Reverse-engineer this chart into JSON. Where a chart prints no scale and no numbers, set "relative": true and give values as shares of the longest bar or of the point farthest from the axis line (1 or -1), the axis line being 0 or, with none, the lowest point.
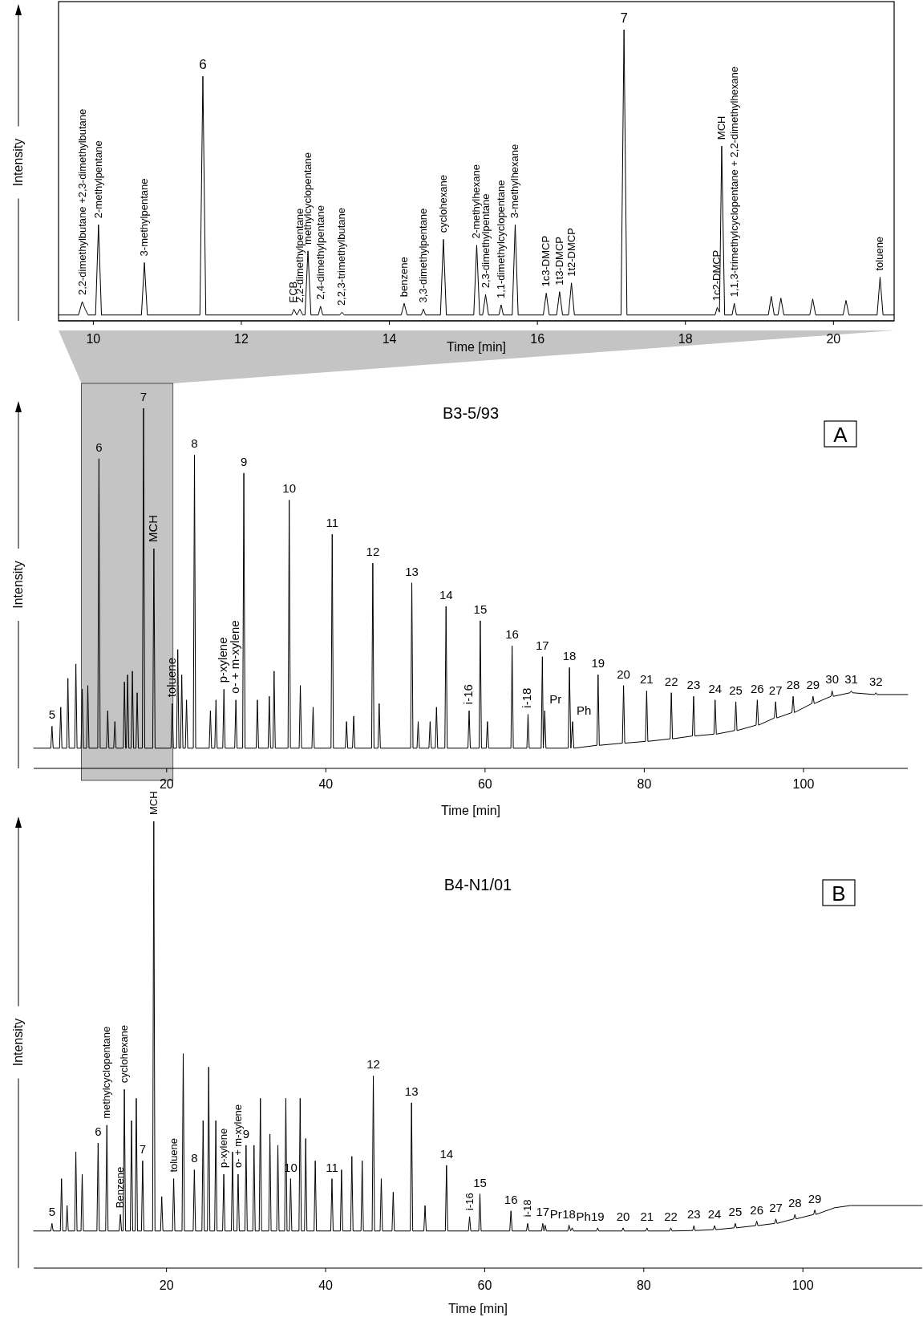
{
  "chart_data": [
    {
      "type": "line",
      "xlabel": "Time [min]",
      "ylabel": "Intensity",
      "relative": true,
      "color": "#000000",
      "xlim": [
        9.53,
        20.82
      ],
      "xticks": [
        10,
        12,
        14,
        16,
        18,
        20
      ],
      "x": [
        9.53,
        9.8,
        9.85,
        9.89,
        9.93,
        10.03,
        10.07,
        10.11,
        10.65,
        10.69,
        10.73,
        11.44,
        11.48,
        11.52,
        12.68,
        12.71,
        12.75,
        12.79,
        12.83,
        12.86,
        12.9,
        12.94,
        13.04,
        13.07,
        13.1,
        13.33,
        13.36,
        13.39,
        14.16,
        14.2,
        14.24,
        14.43,
        14.46,
        14.49,
        14.69,
        14.73,
        14.77,
        15.14,
        15.18,
        15.22,
        15.26,
        15.3,
        15.34,
        15.48,
        15.51,
        15.54,
        15.66,
        15.7,
        15.74,
        16.08,
        16.12,
        16.16,
        16.26,
        16.3,
        16.34,
        16.42,
        16.46,
        16.5,
        17.13,
        17.17,
        17.21,
        18.4,
        18.43,
        18.46,
        18.49,
        18.53,
        18.63,
        18.66,
        18.69,
        19.12,
        19.16,
        19.2,
        19.25,
        19.29,
        19.33,
        19.68,
        19.72,
        19.76,
        20.13,
        20.17,
        20.21,
        20.59,
        20.63,
        20.67,
        20.82
      ],
      "values": [
        0.02,
        0.02,
        0.066,
        0.04,
        0.02,
        0.02,
        0.33,
        0.02,
        0.02,
        0.2,
        0.02,
        0.02,
        0.84,
        0.02,
        0.02,
        0.04,
        0.02,
        0.04,
        0.02,
        0.02,
        0.24,
        0.02,
        0.02,
        0.05,
        0.02,
        0.02,
        0.03,
        0.02,
        0.02,
        0.06,
        0.02,
        0.02,
        0.04,
        0.02,
        0.02,
        0.28,
        0.02,
        0.02,
        0.26,
        0.02,
        0.02,
        0.09,
        0.02,
        0.02,
        0.055,
        0.02,
        0.02,
        0.33,
        0.02,
        0.02,
        0.095,
        0.02,
        0.02,
        0.1,
        0.02,
        0.02,
        0.13,
        0.02,
        0.02,
        1,
        0.02,
        0.02,
        0.046,
        0.03,
        0.6,
        0.02,
        0.02,
        0.06,
        0.02,
        0.02,
        0.084,
        0.02,
        0.02,
        0.078,
        0.02,
        0.02,
        0.075,
        0.02,
        0.02,
        0.07,
        0.02,
        0.02,
        0.15,
        0.02,
        0.02
      ],
      "annotations": [
        {
          "text": "2,2-dimethylbutane +2,3-dimethylbutane",
          "x": 9.85,
          "y": 0.066
        },
        {
          "text": "2-methylpentane",
          "x": 10.07,
          "y": 0.33
        },
        {
          "text": "3-methylpentane",
          "x": 10.69,
          "y": 0.2
        },
        {
          "text": "6",
          "x": 11.48,
          "y": 0.84
        },
        {
          "text": "ECB",
          "x": 12.71,
          "y": 0.04
        },
        {
          "text": "2,2-dimethylpentane",
          "x": 12.79,
          "y": 0.04
        },
        {
          "text": "methylcyclopentane",
          "x": 12.9,
          "y": 0.24
        },
        {
          "text": "2,4-dimethylpentane",
          "x": 13.07,
          "y": 0.05
        },
        {
          "text": "2,2,3-trimethylbutane",
          "x": 13.36,
          "y": 0.03
        },
        {
          "text": "benzene",
          "x": 14.2,
          "y": 0.06
        },
        {
          "text": "3,3-dimethylpentane",
          "x": 14.46,
          "y": 0.04
        },
        {
          "text": "cyclohexane",
          "x": 14.73,
          "y": 0.28
        },
        {
          "text": "2-methylhexane",
          "x": 15.18,
          "y": 0.26
        },
        {
          "text": "2,3-dimethylpentane",
          "x": 15.3,
          "y": 0.09
        },
        {
          "text": "1,1-dimethylcyclopentane",
          "x": 15.51,
          "y": 0.055
        },
        {
          "text": "3-methylhexane",
          "x": 15.7,
          "y": 0.33
        },
        {
          "text": "1c3-DMCP",
          "x": 16.12,
          "y": 0.095
        },
        {
          "text": "1t3-DMCP",
          "x": 16.3,
          "y": 0.1
        },
        {
          "text": "1t2-DMCP",
          "x": 16.46,
          "y": 0.13
        },
        {
          "text": "7",
          "x": 17.17,
          "y": 1
        },
        {
          "text": "1c2-DMCP",
          "x": 18.43,
          "y": 0.046
        },
        {
          "text": "MCH",
          "x": 18.49,
          "y": 0.6
        },
        {
          "text": "1,1,3-trimethylcyclopentane + 2,2-dimethylhexane",
          "x": 18.66,
          "y": 0.06
        },
        {
          "text": "toluene",
          "x": 20.63,
          "y": 0.15
        }
      ]
    },
    {
      "type": "line",
      "title": "B3-5/93",
      "xlabel": "Time [min]",
      "ylabel": "Intensity",
      "relative": true,
      "color": "#000000",
      "xlim": [
        3.3,
        113.1
      ],
      "xticks": [
        20,
        40,
        60,
        80,
        100
      ],
      "bands": [
        {
          "axis": "x",
          "from": 9.3,
          "to": 20.8,
          "color": "#c4c4c4"
        }
      ],
      "x": [
        3.3,
        5.45,
        5.6,
        5.75,
        6.55,
        6.7,
        6.85,
        7.45,
        7.6,
        7.75,
        8.45,
        8.6,
        8.75,
        9.25,
        9.4,
        9.55,
        9.95,
        10.1,
        10.25,
        11.35,
        11.5,
        11.65,
        12.45,
        12.6,
        12.75,
        13.35,
        13.5,
        13.65,
        14.55,
        14.7,
        14.85,
        14.95,
        15.1,
        15.25,
        15.55,
        15.7,
        15.85,
        16.15,
        16.3,
        16.45,
        16.95,
        17.1,
        17.25,
        18.25,
        18.4,
        18.55,
        20.55,
        20.7,
        20.85,
        21.25,
        21.4,
        21.55,
        21.75,
        21.9,
        22.05,
        22.35,
        22.5,
        22.65,
        23.35,
        23.5,
        23.65,
        25.35,
        25.5,
        25.65,
        26.05,
        26.2,
        26.35,
        27.05,
        27.2,
        27.35,
        28.55,
        28.7,
        28.85,
        29.55,
        29.7,
        29.85,
        31.25,
        31.4,
        31.55,
        32.75,
        32.9,
        33.05,
        33.35,
        33.5,
        33.65,
        35.25,
        35.4,
        35.55,
        36.65,
        36.8,
        36.95,
        38.25,
        38.4,
        38.55,
        40.65,
        40.8,
        40.95,
        42.45,
        42.6,
        42.75,
        43.35,
        43.5,
        43.65,
        45.75,
        45.9,
        46.05,
        46.55,
        46.7,
        46.85,
        50.65,
        50.8,
        50.95,
        51.45,
        51.6,
        51.75,
        52.95,
        53.1,
        53.25,
        53.75,
        53.9,
        54.05,
        54.95,
        55.1,
        55.25,
        57.85,
        58.0,
        58.15,
        59.25,
        59.4,
        59.55,
        60.15,
        60.3,
        60.45,
        63.25,
        63.4,
        63.55,
        65.25,
        65.4,
        65.55,
        67.05,
        67.2,
        67.32,
        67.5,
        67.65,
        70.45,
        70.6,
        70.78,
        71.0,
        71.15,
        74.05,
        74.2,
        74.35,
        77.25,
        77.4,
        77.55,
        80.15,
        80.3,
        80.45,
        83.25,
        83.4,
        83.55,
        86.05,
        86.2,
        86.35,
        88.75,
        88.9,
        89.05,
        91.35,
        91.5,
        91.65,
        94.05,
        94.2,
        94.35,
        96.35,
        96.5,
        96.65,
        98.55,
        98.7,
        98.85,
        101.05,
        101.2,
        101.35,
        103.45,
        103.6,
        103.75,
        105.85,
        106.0,
        106.15,
        108.95,
        109.1,
        109.25,
        113.1
      ],
      "values": [
        0.056,
        0.056,
        0.117,
        0.056,
        0.056,
        0.17,
        0.056,
        0.056,
        0.25,
        0.056,
        0.056,
        0.29,
        0.056,
        0.056,
        0.22,
        0.056,
        0.056,
        0.23,
        0.056,
        0.056,
        0.86,
        0.056,
        0.056,
        0.16,
        0.056,
        0.056,
        0.13,
        0.056,
        0.056,
        0.24,
        0.056,
        0.056,
        0.26,
        0.056,
        0.056,
        0.27,
        0.056,
        0.056,
        0.21,
        0.056,
        0.056,
        1,
        0.056,
        0.056,
        0.61,
        0.056,
        0.056,
        0.18,
        0.056,
        0.056,
        0.33,
        0.056,
        0.056,
        0.26,
        0.056,
        0.056,
        0.19,
        0.056,
        0.056,
        0.87,
        0.056,
        0.056,
        0.16,
        0.056,
        0.056,
        0.19,
        0.056,
        0.056,
        0.22,
        0.056,
        0.056,
        0.19,
        0.056,
        0.056,
        0.82,
        0.056,
        0.056,
        0.19,
        0.056,
        0.056,
        0.2,
        0.056,
        0.056,
        0.27,
        0.056,
        0.056,
        0.745,
        0.056,
        0.056,
        0.23,
        0.056,
        0.056,
        0.17,
        0.056,
        0.056,
        0.65,
        0.056,
        0.056,
        0.13,
        0.056,
        0.056,
        0.145,
        0.056,
        0.056,
        0.57,
        0.056,
        0.056,
        0.18,
        0.056,
        0.056,
        0.515,
        0.056,
        0.056,
        0.13,
        0.056,
        0.056,
        0.13,
        0.056,
        0.056,
        0.17,
        0.056,
        0.056,
        0.45,
        0.056,
        0.056,
        0.16,
        0.056,
        0.056,
        0.41,
        0.056,
        0.056,
        0.13,
        0.056,
        0.056,
        0.34,
        0.056,
        0.056,
        0.15,
        0.056,
        0.056,
        0.31,
        0.056,
        0.16,
        0.056,
        0.056,
        0.28,
        0.056,
        0.13,
        0.056,
        0.064,
        0.26,
        0.064,
        0.07,
        0.23,
        0.07,
        0.075,
        0.215,
        0.075,
        0.082,
        0.21,
        0.082,
        0.09,
        0.2,
        0.09,
        0.095,
        0.19,
        0.095,
        0.105,
        0.185,
        0.105,
        0.12,
        0.19,
        0.12,
        0.14,
        0.185,
        0.14,
        0.155,
        0.2,
        0.155,
        0.18,
        0.2,
        0.18,
        0.2,
        0.215,
        0.2,
        0.21,
        0.215,
        0.21,
        0.205,
        0.21,
        0.205,
        0.205
      ],
      "annotations": [
        "A",
        {
          "text": "5",
          "x": 5.6,
          "y": 0.117
        },
        {
          "text": "6",
          "x": 11.5,
          "y": 0.86
        },
        {
          "text": "7",
          "x": 17.1,
          "y": 1
        },
        {
          "text": "MCH",
          "x": 18.4,
          "y": 0.61
        },
        {
          "text": "toluene",
          "x": 20.7,
          "y": 0.18
        },
        {
          "text": "8",
          "x": 23.5,
          "y": 0.87
        },
        {
          "text": "p-xylene",
          "x": 27.2,
          "y": 0.22
        },
        {
          "text": "o- + m-xylene",
          "x": 28.7,
          "y": 0.19
        },
        {
          "text": "9",
          "x": 29.7,
          "y": 0.82
        },
        {
          "text": "10",
          "x": 35.4,
          "y": 0.745
        },
        {
          "text": "11",
          "x": 40.8,
          "y": 0.65
        },
        {
          "text": "12",
          "x": 45.9,
          "y": 0.57
        },
        {
          "text": "13",
          "x": 50.8,
          "y": 0.515
        },
        {
          "text": "14",
          "x": 55.1,
          "y": 0.45
        },
        {
          "text": "i-16",
          "x": 58.0,
          "y": 0.16
        },
        {
          "text": "15",
          "x": 59.4,
          "y": 0.41
        },
        {
          "text": "16",
          "x": 63.4,
          "y": 0.34
        },
        {
          "text": "i-18",
          "x": 65.4,
          "y": 0.15
        },
        {
          "text": "17",
          "x": 67.2,
          "y": 0.31
        },
        {
          "text": "Pr",
          "x": 67.5,
          "y": 0.16
        },
        {
          "text": "18",
          "x": 70.6,
          "y": 0.28
        },
        {
          "text": "Ph",
          "x": 71.0,
          "y": 0.13
        },
        {
          "text": "19",
          "x": 74.2,
          "y": 0.26
        },
        {
          "text": "20",
          "x": 77.4,
          "y": 0.23
        },
        {
          "text": "21",
          "x": 80.3,
          "y": 0.215
        },
        {
          "text": "22",
          "x": 83.4,
          "y": 0.21
        },
        {
          "text": "23",
          "x": 86.2,
          "y": 0.2
        },
        {
          "text": "24",
          "x": 88.9,
          "y": 0.19
        },
        {
          "text": "25",
          "x": 91.5,
          "y": 0.185
        },
        {
          "text": "26",
          "x": 94.2,
          "y": 0.19
        },
        {
          "text": "27",
          "x": 96.5,
          "y": 0.185
        },
        {
          "text": "28",
          "x": 98.7,
          "y": 0.2
        },
        {
          "text": "29",
          "x": 101.2,
          "y": 0.2
        },
        {
          "text": "30",
          "x": 103.6,
          "y": 0.215
        },
        {
          "text": "31",
          "x": 106.0,
          "y": 0.215
        },
        {
          "text": "32",
          "x": 109.1,
          "y": 0.21
        }
      ]
    },
    {
      "type": "line",
      "title": "B4-N1/01",
      "xlabel": "Time [min]",
      "ylabel": "Intensity",
      "relative": true,
      "color": "#000000",
      "xlim": [
        3.3,
        115
      ],
      "xticks": [
        20,
        40,
        60,
        80,
        100
      ],
      "x": [
        3.3,
        5.45,
        5.6,
        5.75,
        6.65,
        6.8,
        6.95,
        7.35,
        7.5,
        7.65,
        8.45,
        8.6,
        8.75,
        9.25,
        9.4,
        9.55,
        11.25,
        11.4,
        11.55,
        12.35,
        12.5,
        12.65,
        14.05,
        14.2,
        14.35,
        14.55,
        14.7,
        14.85,
        15.45,
        15.6,
        15.75,
        16.05,
        16.2,
        16.35,
        16.85,
        17.0,
        17.15,
        18.25,
        18.4,
        18.55,
        19.25,
        19.4,
        19.55,
        20.75,
        20.9,
        21.05,
        21.95,
        22.1,
        22.25,
        23.35,
        23.5,
        23.65,
        24.45,
        24.6,
        24.75,
        25.15,
        25.3,
        25.45,
        26.05,
        26.2,
        26.35,
        27.05,
        27.2,
        27.35,
        28.15,
        28.3,
        28.45,
        28.85,
        29.0,
        29.15,
        29.85,
        30.0,
        30.15,
        30.85,
        31.0,
        31.15,
        31.65,
        31.8,
        31.95,
        32.85,
        33.0,
        33.15,
        33.85,
        34.0,
        34.15,
        34.85,
        35.0,
        35.15,
        35.45,
        35.6,
        35.75,
        36.65,
        36.8,
        36.95,
        37.35,
        37.5,
        37.65,
        38.55,
        38.7,
        38.85,
        40.65,
        40.8,
        40.95,
        41.85,
        42.0,
        42.15,
        43.15,
        43.3,
        43.45,
        44.45,
        44.6,
        44.75,
        45.85,
        46.0,
        46.15,
        46.85,
        47.0,
        47.15,
        48.35,
        48.5,
        48.65,
        50.65,
        50.8,
        50.95,
        52.35,
        52.5,
        52.65,
        55.05,
        55.2,
        55.35,
        57.95,
        58.1,
        58.25,
        59.25,
        59.4,
        59.55,
        63.15,
        63.3,
        63.45,
        65.25,
        65.4,
        65.55,
        67.15,
        67.3,
        67.45,
        67.6,
        67.75,
        70.45,
        70.6,
        70.8,
        71.0,
        71.15,
        74.05,
        74.2,
        74.35,
        77.25,
        77.4,
        77.55,
        80.25,
        80.4,
        80.55,
        83.25,
        83.4,
        83.55,
        86.15,
        86.3,
        86.45,
        88.75,
        88.9,
        89.05,
        91.35,
        91.5,
        91.65,
        94.05,
        94.2,
        94.35,
        96.45,
        96.6,
        96.75,
        98.85,
        99.0,
        99.15,
        101.35,
        101.5,
        101.65,
        104.0,
        106.0,
        115
      ],
      "values": [
        0.083,
        0.083,
        0.1,
        0.083,
        0.083,
        0.2,
        0.083,
        0.083,
        0.14,
        0.083,
        0.083,
        0.26,
        0.083,
        0.083,
        0.21,
        0.083,
        0.083,
        0.28,
        0.083,
        0.083,
        0.32,
        0.083,
        0.083,
        0.12,
        0.083,
        0.083,
        0.4,
        0.083,
        0.083,
        0.33,
        0.083,
        0.083,
        0.38,
        0.083,
        0.083,
        0.24,
        0.083,
        0.083,
        1,
        0.083,
        0.083,
        0.16,
        0.083,
        0.083,
        0.2,
        0.083,
        0.083,
        0.48,
        0.083,
        0.083,
        0.22,
        0.083,
        0.083,
        0.33,
        0.083,
        0.083,
        0.45,
        0.083,
        0.083,
        0.33,
        0.083,
        0.083,
        0.21,
        0.083,
        0.083,
        0.26,
        0.083,
        0.083,
        0.21,
        0.083,
        0.083,
        0.275,
        0.083,
        0.083,
        0.275,
        0.083,
        0.083,
        0.38,
        0.083,
        0.083,
        0.3,
        0.083,
        0.083,
        0.275,
        0.083,
        0.083,
        0.38,
        0.083,
        0.083,
        0.2,
        0.083,
        0.083,
        0.38,
        0.083,
        0.083,
        0.29,
        0.083,
        0.083,
        0.24,
        0.083,
        0.083,
        0.2,
        0.083,
        0.083,
        0.22,
        0.083,
        0.083,
        0.25,
        0.083,
        0.083,
        0.24,
        0.083,
        0.083,
        0.43,
        0.083,
        0.083,
        0.2,
        0.083,
        0.083,
        0.17,
        0.083,
        0.083,
        0.37,
        0.083,
        0.083,
        0.14,
        0.083,
        0.083,
        0.23,
        0.083,
        0.083,
        0.115,
        0.083,
        0.083,
        0.166,
        0.083,
        0.083,
        0.128,
        0.083,
        0.083,
        0.1,
        0.083,
        0.083,
        0.1,
        0.083,
        0.096,
        0.083,
        0.083,
        0.096,
        0.083,
        0.09,
        0.083,
        0.083,
        0.09,
        0.083,
        0.083,
        0.09,
        0.083,
        0.083,
        0.09,
        0.083,
        0.083,
        0.09,
        0.083,
        0.084,
        0.095,
        0.084,
        0.086,
        0.095,
        0.086,
        0.09,
        0.1,
        0.09,
        0.095,
        0.105,
        0.095,
        0.1,
        0.11,
        0.1,
        0.11,
        0.12,
        0.11,
        0.12,
        0.13,
        0.12,
        0.135,
        0.14,
        0.14
      ],
      "annotations": [
        "B",
        {
          "text": "5",
          "x": 5.6,
          "y": 0.1
        },
        {
          "text": "Benzene",
          "x": 14.2,
          "y": 0.12
        },
        {
          "text": "6",
          "x": 11.4,
          "y": 0.28
        },
        {
          "text": "methylcyclopentane",
          "x": 12.5,
          "y": 0.32
        },
        {
          "text": "cyclohexane",
          "x": 14.7,
          "y": 0.4
        },
        {
          "text": "7",
          "x": 17.0,
          "y": 0.24
        },
        {
          "text": "MCH",
          "x": 18.4,
          "y": 1
        },
        {
          "text": "toluene",
          "x": 20.9,
          "y": 0.2
        },
        {
          "text": "8",
          "x": 23.5,
          "y": 0.22
        },
        {
          "text": "p-xylene",
          "x": 27.2,
          "y": 0.21
        },
        {
          "text": "o- + m-xylene",
          "x": 29.0,
          "y": 0.21
        },
        {
          "text": "9",
          "x": 30.0,
          "y": 0.275
        },
        {
          "text": "10",
          "x": 35.6,
          "y": 0.2
        },
        {
          "text": "11",
          "x": 40.8,
          "y": 0.2
        },
        {
          "text": "12",
          "x": 46.0,
          "y": 0.43
        },
        {
          "text": "13",
          "x": 50.8,
          "y": 0.37
        },
        {
          "text": "14",
          "x": 55.2,
          "y": 0.23
        },
        {
          "text": "i-16",
          "x": 58.1,
          "y": 0.115
        },
        {
          "text": "15",
          "x": 59.4,
          "y": 0.166
        },
        {
          "text": "16",
          "x": 63.3,
          "y": 0.128
        },
        {
          "text": "i-18",
          "x": 65.4,
          "y": 0.1
        },
        {
          "text": "17",
          "x": 67.3,
          "y": 0.1
        },
        {
          "text": "Pr",
          "x": 67.6,
          "y": 0.096
        },
        {
          "text": "18",
          "x": 70.6,
          "y": 0.096
        },
        {
          "text": "Ph",
          "x": 71.0,
          "y": 0.09
        },
        {
          "text": "19",
          "x": 74.2,
          "y": 0.09
        },
        {
          "text": "20",
          "x": 77.4,
          "y": 0.09
        },
        {
          "text": "21",
          "x": 80.4,
          "y": 0.09
        },
        {
          "text": "22",
          "x": 83.4,
          "y": 0.09
        },
        {
          "text": "23",
          "x": 86.3,
          "y": 0.095
        },
        {
          "text": "24",
          "x": 88.9,
          "y": 0.095
        },
        {
          "text": "25",
          "x": 91.5,
          "y": 0.1
        },
        {
          "text": "26",
          "x": 94.2,
          "y": 0.105
        },
        {
          "text": "27",
          "x": 96.6,
          "y": 0.11
        },
        {
          "text": "28",
          "x": 99.0,
          "y": 0.12
        },
        {
          "text": "29",
          "x": 101.5,
          "y": 0.13
        }
      ]
    }
  ]
}
